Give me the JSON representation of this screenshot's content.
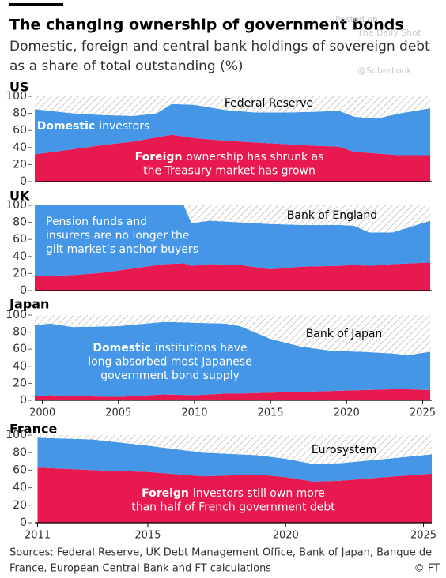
{
  "title": "The changing ownership of government bonds",
  "subtitle": [
    "Domestic, foreign and central bank holdings of sovereign debt",
    "as a share of total outstanding (%)"
  ],
  "watermark": [
    "Posted on",
    "The Daily Shot",
    "@SoberLook"
  ],
  "source": [
    "Sources: Federal Reserve, UK Debt Management Office, Bank of Japan, Banque de",
    "France, European Central Bank and FT calculations"
  ],
  "credit": "© FT",
  "chart_data": [
    {
      "type": "area",
      "title": "US",
      "x": [
        1999.5,
        2002,
        2004,
        2006,
        2007.5,
        2008.5,
        2010,
        2012,
        2014,
        2016,
        2018,
        2019.5,
        2020.5,
        2022,
        2023.5,
        2025.5
      ],
      "xlim": [
        1999.5,
        2025.6
      ],
      "ylim": [
        0,
        100
      ],
      "yticks": [
        0,
        20,
        40,
        60,
        80,
        100
      ],
      "series": [
        {
          "color": "#e8194f",
          "values": [
            32,
            38,
            43,
            47,
            52,
            55,
            51,
            48,
            46,
            44,
            42,
            41,
            35,
            33,
            31,
            31
          ]
        },
        {
          "color": "#4596e6",
          "values": [
            53,
            42,
            35,
            30,
            28,
            36,
            39,
            36,
            35,
            37,
            40,
            42,
            41,
            41,
            49,
            55
          ]
        },
        {
          "name": "Federal Reserve",
          "color": "#c9c6c2",
          "hatch": true,
          "values": [
            15,
            20,
            22,
            23,
            20,
            9,
            10,
            16,
            19,
            19,
            18,
            17,
            24,
            26,
            20,
            14
          ]
        }
      ],
      "annotations": [
        {
          "bold": "Domestic",
          "lines": [
            "investors"
          ]
        },
        {
          "bold": "Foreign",
          "lines": [
            "ownership has shrunk as",
            "the Treasury market has grown"
          ]
        }
      ]
    },
    {
      "type": "area",
      "title": "UK",
      "x": [
        1999.5,
        2002,
        2004,
        2006,
        2008,
        2009.3,
        2009.8,
        2011,
        2013,
        2015,
        2017,
        2019.5,
        2020.5,
        2021.5,
        2023,
        2025.5
      ],
      "xlim": [
        1999.5,
        2025.6
      ],
      "ylim": [
        0,
        100
      ],
      "yticks": [
        0,
        20,
        40,
        60,
        80,
        100
      ],
      "series": [
        {
          "color": "#e8194f",
          "values": [
            17,
            18,
            21,
            26,
            31,
            32,
            29,
            31,
            30,
            25,
            28,
            29,
            30,
            29,
            31,
            33
          ]
        },
        {
          "color": "#4596e6",
          "values": [
            83,
            82,
            79,
            74,
            69,
            68,
            50,
            51,
            50,
            53,
            49,
            48,
            46,
            39,
            37,
            49
          ]
        },
        {
          "name": "Bank of England",
          "color": "#c9c6c2",
          "hatch": true,
          "values": [
            0,
            0,
            0,
            0,
            0,
            0,
            21,
            18,
            20,
            22,
            23,
            23,
            24,
            32,
            32,
            18
          ]
        }
      ],
      "annotations": [
        {
          "lines": [
            "Pension funds and",
            "insurers are no longer the",
            "gilt market’s anchor buyers"
          ]
        }
      ]
    },
    {
      "type": "area",
      "title": "Japan",
      "x": [
        1999.5,
        2000.5,
        2002,
        2005,
        2008,
        2010,
        2012,
        2013,
        2015,
        2017,
        2019,
        2021,
        2023,
        2024,
        2025.5
      ],
      "xlim": [
        1999.5,
        2025.6
      ],
      "ylim": [
        0,
        100
      ],
      "yticks": [
        0,
        20,
        40,
        60,
        80,
        100
      ],
      "xticks": [
        2000,
        2005,
        2010,
        2015,
        2020,
        2025
      ],
      "series": [
        {
          "color": "#e8194f",
          "values": [
            5,
            6,
            5,
            4,
            7,
            6,
            8,
            8,
            9,
            10,
            11,
            12,
            13,
            13,
            12
          ]
        },
        {
          "color": "#4596e6",
          "values": [
            83,
            84,
            81,
            83,
            85,
            85,
            82,
            79,
            63,
            53,
            47,
            45,
            42,
            40,
            45
          ]
        },
        {
          "name": "Bank of Japan",
          "color": "#c9c6c2",
          "hatch": true,
          "values": [
            12,
            10,
            14,
            13,
            8,
            9,
            10,
            13,
            28,
            37,
            42,
            43,
            45,
            47,
            43
          ]
        }
      ],
      "annotations": [
        {
          "bold": "Domestic",
          "lines": [
            "institutions have",
            "long absorbed most Japanese",
            "government bond supply"
          ]
        }
      ]
    },
    {
      "type": "area",
      "title": "France",
      "x": [
        2011,
        2013,
        2015,
        2017,
        2019,
        2020,
        2021,
        2022,
        2024,
        2025.3
      ],
      "xlim": [
        2010.9,
        2025.3
      ],
      "ylim": [
        0,
        100
      ],
      "yticks": [
        0,
        20,
        40,
        60,
        80,
        100
      ],
      "xticks": [
        2011,
        2015,
        2020,
        2025
      ],
      "series": [
        {
          "color": "#e8194f",
          "values": [
            63,
            60,
            58,
            53,
            55,
            52,
            47,
            48,
            53,
            56
          ]
        },
        {
          "color": "#4596e6",
          "values": [
            34,
            35,
            30,
            27,
            22,
            21,
            20,
            20,
            21,
            22
          ]
        },
        {
          "name": "Eurosystem",
          "color": "#c9c6c2",
          "hatch": true,
          "values": [
            3,
            5,
            12,
            20,
            23,
            27,
            33,
            32,
            26,
            22
          ]
        }
      ],
      "annotations": [
        {
          "bold": "Foreign",
          "lines": [
            "investors still own more",
            "than half of French government debt"
          ]
        }
      ]
    }
  ]
}
